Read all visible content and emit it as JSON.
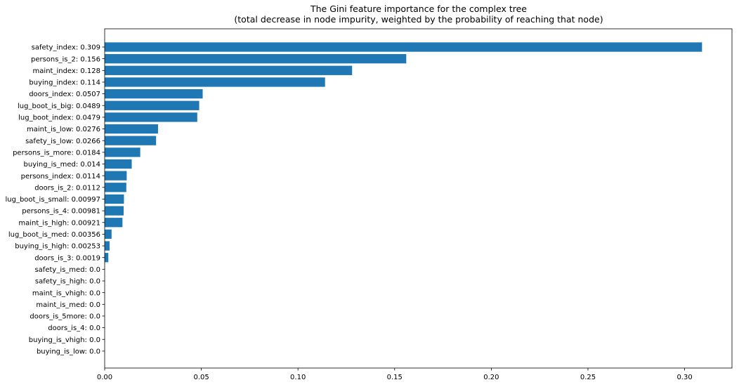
{
  "chart_data": {
    "type": "bar",
    "orientation": "horizontal",
    "title": [
      "The Gini feature importance for the complex tree",
      "(total decrease in node impurity, weighted by the probability of reaching that node)"
    ],
    "xlabel": "",
    "ylabel": "",
    "xlim": [
      0,
      0.3245
    ],
    "xticks": [
      "0.00",
      "0.05",
      "0.10",
      "0.15",
      "0.20",
      "0.25",
      "0.30"
    ],
    "xtick_values": [
      0,
      0.05,
      0.1,
      0.15,
      0.2,
      0.25,
      0.3
    ],
    "grid": false,
    "bar_color": "#1f77b4",
    "categories": [
      "safety_index: 0.309",
      "persons_is_2: 0.156",
      "maint_index: 0.128",
      "buying_index: 0.114",
      "doors_index: 0.0507",
      "lug_boot_is_big: 0.0489",
      "lug_boot_index: 0.0479",
      "maint_is_low: 0.0276",
      "safety_is_low: 0.0266",
      "persons_is_more: 0.0184",
      "buying_is_med: 0.014",
      "persons_index: 0.0114",
      "doors_is_2: 0.0112",
      "lug_boot_is_small: 0.00997",
      "persons_is_4: 0.00981",
      "maint_is_high: 0.00921",
      "lug_boot_is_med: 0.00356",
      "buying_is_high: 0.00253",
      "doors_is_3: 0.0019",
      "safety_is_med: 0.0",
      "safety_is_high: 0.0",
      "maint_is_vhigh: 0.0",
      "maint_is_med: 0.0",
      "doors_is_5more: 0.0",
      "doors_is_4: 0.0",
      "buying_is_vhigh: 0.0",
      "buying_is_low: 0.0"
    ],
    "values": [
      0.309,
      0.156,
      0.128,
      0.114,
      0.0507,
      0.0489,
      0.0479,
      0.0276,
      0.0266,
      0.0184,
      0.014,
      0.0114,
      0.0112,
      0.00997,
      0.00981,
      0.00921,
      0.00356,
      0.00253,
      0.0019,
      0.0,
      0.0,
      0.0,
      0.0,
      0.0,
      0.0,
      0.0,
      0.0
    ]
  }
}
